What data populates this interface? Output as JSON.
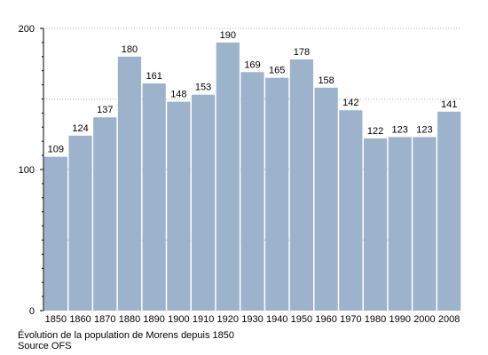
{
  "chart_data": {
    "type": "bar",
    "categories": [
      "1850",
      "1860",
      "1870",
      "1880",
      "1890",
      "1900",
      "1910",
      "1920",
      "1930",
      "1940",
      "1950",
      "1960",
      "1970",
      "1980",
      "1990",
      "2000",
      "2008"
    ],
    "values": [
      109,
      124,
      137,
      180,
      161,
      148,
      153,
      190,
      169,
      165,
      178,
      158,
      142,
      122,
      123,
      123,
      141
    ],
    "yticks": [
      0,
      100,
      200
    ],
    "ylim": [
      0,
      200
    ],
    "grid": true,
    "bar_color": "#9db3cc",
    "caption": "Évolution de la population de Morens depuis 1850",
    "source": "Source OFS"
  }
}
